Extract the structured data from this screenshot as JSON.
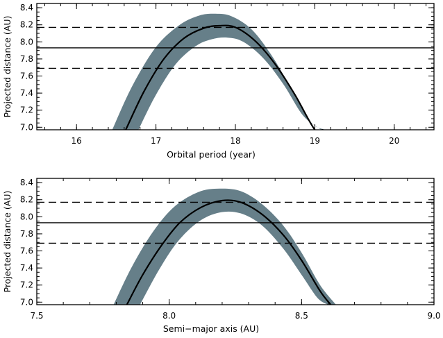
{
  "chart_data": [
    {
      "type": "line",
      "xlabel": "Orbital period (year)",
      "ylabel": "Projected distance (AU)",
      "xlim": [
        15.5,
        20.5
      ],
      "ylim": [
        6.97,
        8.45
      ],
      "xticks": [
        16,
        17,
        18,
        19,
        20
      ],
      "xtick_labels": [
        "16",
        "17",
        "18",
        "19",
        "20"
      ],
      "yticks": [
        7.0,
        7.2,
        7.4,
        7.6,
        7.8,
        8.0,
        8.2,
        8.4
      ],
      "ytick_labels": [
        "7.0",
        "7.2",
        "7.4",
        "7.6",
        "7.8",
        "8.0",
        "8.2",
        "8.4"
      ],
      "grid": false,
      "reference_lines": [
        {
          "style": "dashed",
          "y": 8.17
        },
        {
          "style": "solid",
          "y": 7.93
        },
        {
          "style": "dashed",
          "y": 7.69
        }
      ],
      "curve": {
        "x": [
          16.62,
          16.85,
          17.1,
          17.35,
          17.6,
          17.8,
          18.0,
          18.25,
          18.5,
          18.75,
          19.0,
          19.1
        ],
        "y": [
          6.97,
          7.42,
          7.8,
          8.04,
          8.16,
          8.19,
          8.17,
          8.01,
          7.74,
          7.38,
          6.97,
          6.97
        ]
      },
      "band_upper": {
        "x": [
          16.45,
          16.7,
          17.0,
          17.3,
          17.55,
          17.75,
          17.95,
          18.2,
          18.45,
          18.7,
          18.95,
          19.13
        ],
        "y": [
          6.97,
          7.48,
          7.94,
          8.2,
          8.31,
          8.33,
          8.3,
          8.15,
          7.85,
          7.46,
          7.06,
          6.97
        ]
      },
      "band_lower": {
        "x": [
          16.78,
          17.0,
          17.25,
          17.5,
          17.7,
          17.9,
          18.1,
          18.35,
          18.6,
          18.85,
          19.08
        ],
        "y": [
          6.97,
          7.38,
          7.74,
          7.95,
          8.03,
          8.05,
          8.0,
          7.81,
          7.51,
          7.14,
          6.97
        ]
      }
    },
    {
      "type": "line",
      "xlabel": "Semi−major axis (AU)",
      "ylabel": "Projected distance (AU)",
      "xlim": [
        7.5,
        9.0
      ],
      "ylim": [
        6.97,
        8.45
      ],
      "xticks": [
        7.5,
        8.0,
        8.5,
        9.0
      ],
      "xtick_labels": [
        "7.5",
        "8.0",
        "8.5",
        "9.0"
      ],
      "yticks": [
        7.0,
        7.2,
        7.4,
        7.6,
        7.8,
        8.0,
        8.2,
        8.4
      ],
      "ytick_labels": [
        "7.0",
        "7.2",
        "7.4",
        "7.6",
        "7.8",
        "8.0",
        "8.2",
        "8.4"
      ],
      "grid": false,
      "reference_lines": [
        {
          "style": "dashed",
          "y": 8.17
        },
        {
          "style": "solid",
          "y": 7.93
        },
        {
          "style": "dashed",
          "y": 7.69
        }
      ],
      "curve": {
        "x": [
          7.84,
          7.9,
          7.97,
          8.04,
          8.12,
          8.2,
          8.27,
          8.35,
          8.43,
          8.5,
          8.57,
          8.61
        ],
        "y": [
          6.97,
          7.32,
          7.66,
          7.93,
          8.11,
          8.19,
          8.17,
          8.03,
          7.79,
          7.49,
          7.13,
          6.97
        ]
      },
      "band_upper": {
        "x": [
          7.79,
          7.86,
          7.94,
          8.02,
          8.11,
          8.19,
          8.27,
          8.35,
          8.43,
          8.5,
          8.57,
          8.63
        ],
        "y": [
          6.97,
          7.42,
          7.83,
          8.12,
          8.29,
          8.33,
          8.3,
          8.15,
          7.9,
          7.58,
          7.2,
          6.97
        ]
      },
      "band_lower": {
        "x": [
          7.89,
          7.96,
          8.03,
          8.11,
          8.19,
          8.27,
          8.35,
          8.43,
          8.5,
          8.56,
          8.6
        ],
        "y": [
          6.97,
          7.37,
          7.7,
          7.94,
          8.05,
          8.04,
          7.9,
          7.63,
          7.32,
          7.05,
          6.97
        ]
      }
    }
  ]
}
